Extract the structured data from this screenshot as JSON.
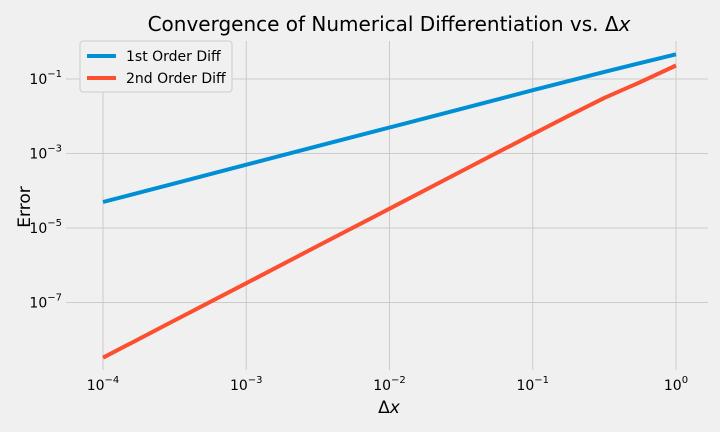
{
  "chart_data": {
    "type": "line",
    "title_prefix": "Convergence of Numerical Differentiation vs. ",
    "title_delta": "Δ",
    "title_var": "x",
    "xlabel_delta": "Δ",
    "xlabel_var": "x",
    "ylabel": "Error",
    "xscale": "log",
    "yscale": "log",
    "xlim": [
      0.0001,
      1
    ],
    "ylim": [
      1e-09,
      1.2
    ],
    "grid": true,
    "legend_position": "top-left",
    "background": "#f0f0f0",
    "grid_color": "#cbcbcb",
    "x_ticks": [
      {
        "value": 0.0001,
        "base": "10",
        "exp": "−4"
      },
      {
        "value": 0.001,
        "base": "10",
        "exp": "−3"
      },
      {
        "value": 0.01,
        "base": "10",
        "exp": "−2"
      },
      {
        "value": 0.1,
        "base": "10",
        "exp": "−1"
      },
      {
        "value": 1,
        "base": "10",
        "exp": "0"
      }
    ],
    "y_ticks": [
      {
        "value": 0.1,
        "base": "10",
        "exp": "−1"
      },
      {
        "value": 0.001,
        "base": "10",
        "exp": "−3"
      },
      {
        "value": 1e-05,
        "base": "10",
        "exp": "−5"
      },
      {
        "value": 1e-07,
        "base": "10",
        "exp": "−7"
      }
    ],
    "series": [
      {
        "name": "1st Order Diff",
        "color": "#008fd5",
        "x": [
          0.0001,
          0.000316,
          0.001,
          0.00316,
          0.01,
          0.0316,
          0.1,
          0.316,
          1
        ],
        "y": [
          5e-05,
          0.000158,
          0.0005,
          0.00158,
          0.005,
          0.0158,
          0.05,
          0.155,
          0.46
        ]
      },
      {
        "name": "2nd Order Diff",
        "color": "#fc4f30",
        "x": [
          0.0001,
          0.000316,
          0.001,
          0.00316,
          0.01,
          0.0316,
          0.1,
          0.178,
          0.316,
          0.562,
          1
        ],
        "y": [
          3.3e-09,
          3.3e-08,
          3.3e-07,
          3.3e-06,
          3.3e-05,
          0.00033,
          0.0033,
          0.0103,
          0.031,
          0.082,
          0.23
        ]
      }
    ]
  }
}
